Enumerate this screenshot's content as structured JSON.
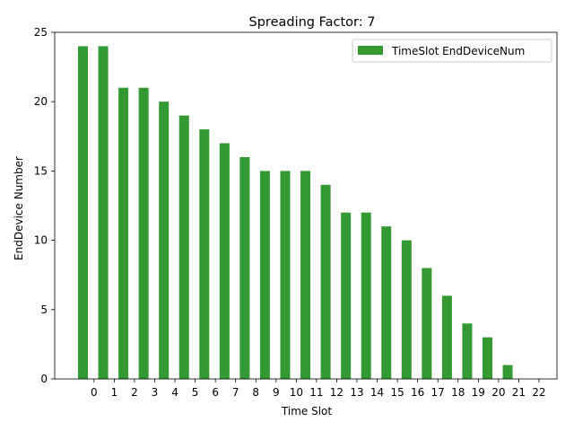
{
  "chart_data": {
    "type": "bar",
    "title": "Spreading Factor: 7",
    "xlabel": "Time Slot",
    "ylabel": "EndDevice Number",
    "x_tick_labels": [
      "0",
      "1",
      "2",
      "3",
      "4",
      "5",
      "6",
      "7",
      "8",
      "9",
      "10",
      "11",
      "12",
      "13",
      "14",
      "15",
      "16",
      "17",
      "18",
      "19",
      "20",
      "21",
      "22"
    ],
    "series": [
      {
        "name": "TimeSlot EndDeviceNum",
        "color": "#339933",
        "values": [
          24,
          24,
          21,
          21,
          20,
          19,
          18,
          17,
          16,
          15,
          15,
          15,
          14,
          12,
          12,
          11,
          10,
          8,
          6,
          4,
          3,
          1,
          0
        ]
      }
    ],
    "ylim": [
      0,
      25
    ],
    "y_ticks": [
      0,
      5,
      10,
      15,
      20,
      25
    ],
    "legend_position": "top-right",
    "grid": false
  }
}
